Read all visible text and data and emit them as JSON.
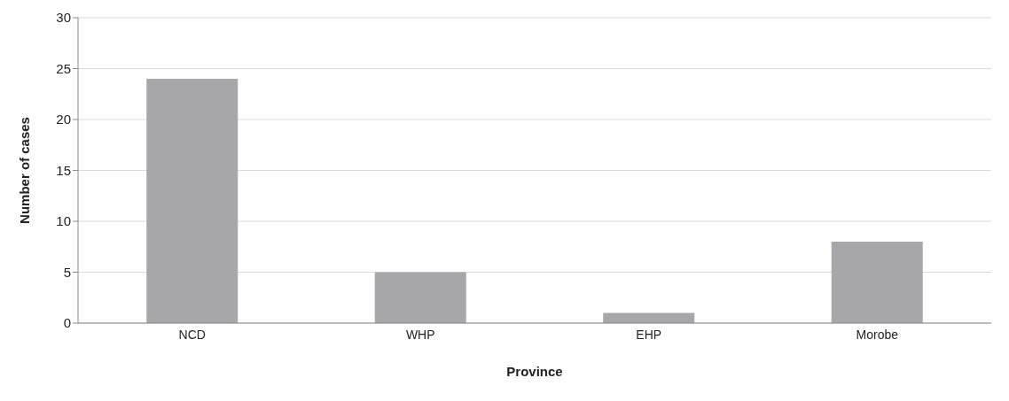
{
  "chart_data": {
    "type": "bar",
    "xlabel": "Province",
    "ylabel": "Number of cases",
    "categories": [
      "NCD",
      "WHP",
      "EHP",
      "Morobe"
    ],
    "values": [
      24,
      5,
      1,
      8
    ],
    "color": "#a7a7aa",
    "ylim": [
      0,
      30
    ],
    "yticks": [
      0,
      5,
      10,
      15,
      20,
      25,
      30
    ],
    "grid": "y"
  }
}
